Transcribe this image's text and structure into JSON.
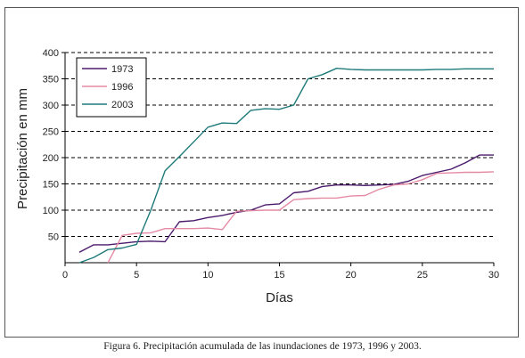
{
  "caption": "Figura 6. Precipitación acumulada de las inundaciones de 1973, 1996 y 2003.",
  "chart_data": {
    "type": "line",
    "xlabel": "Días",
    "ylabel": "Precipitación en mm",
    "xlim": [
      0,
      30
    ],
    "ylim": [
      0,
      400
    ],
    "xticks": [
      0,
      5,
      10,
      15,
      20,
      25,
      30
    ],
    "yticks": [
      50,
      100,
      150,
      200,
      250,
      300,
      350,
      400
    ],
    "grid": "horizontal dashed",
    "legend_position": "top-left",
    "series": [
      {
        "name": "1973",
        "color": "#4b1a6b",
        "points": [
          [
            1,
            20
          ],
          [
            2,
            34
          ],
          [
            3,
            34
          ],
          [
            4,
            37
          ],
          [
            5,
            40
          ],
          [
            6,
            41
          ],
          [
            7,
            40
          ],
          [
            8,
            78
          ],
          [
            9,
            80
          ],
          [
            10,
            86
          ],
          [
            11,
            90
          ],
          [
            12,
            96
          ],
          [
            13,
            100
          ],
          [
            14,
            110
          ],
          [
            15,
            112
          ],
          [
            16,
            133
          ],
          [
            17,
            136
          ],
          [
            18,
            145
          ],
          [
            19,
            148
          ],
          [
            20,
            148
          ],
          [
            21,
            147
          ],
          [
            22,
            148
          ],
          [
            23,
            149
          ],
          [
            24,
            155
          ],
          [
            25,
            166
          ],
          [
            26,
            172
          ],
          [
            27,
            178
          ],
          [
            28,
            190
          ],
          [
            29,
            205
          ],
          [
            30,
            205
          ]
        ]
      },
      {
        "name": "1996",
        "color": "#e48aa4",
        "points": [
          [
            3,
            0
          ],
          [
            4,
            52
          ],
          [
            5,
            56
          ],
          [
            6,
            57
          ],
          [
            7,
            65
          ],
          [
            8,
            65
          ],
          [
            9,
            65
          ],
          [
            10,
            66
          ],
          [
            11,
            63
          ],
          [
            12,
            98
          ],
          [
            13,
            99
          ],
          [
            14,
            100
          ],
          [
            15,
            100
          ],
          [
            16,
            120
          ],
          [
            17,
            122
          ],
          [
            18,
            123
          ],
          [
            19,
            123
          ],
          [
            20,
            127
          ],
          [
            21,
            128
          ],
          [
            22,
            140
          ],
          [
            23,
            148
          ],
          [
            24,
            150
          ],
          [
            25,
            158
          ],
          [
            26,
            170
          ],
          [
            27,
            171
          ],
          [
            28,
            172
          ],
          [
            29,
            172
          ],
          [
            30,
            173
          ]
        ]
      },
      {
        "name": "2003",
        "color": "#1f7a7a",
        "points": [
          [
            1,
            0
          ],
          [
            2,
            10
          ],
          [
            3,
            25
          ],
          [
            4,
            28
          ],
          [
            5,
            35
          ],
          [
            6,
            100
          ],
          [
            7,
            175
          ],
          [
            8,
            202
          ],
          [
            9,
            230
          ],
          [
            10,
            258
          ],
          [
            11,
            266
          ],
          [
            12,
            265
          ],
          [
            13,
            290
          ],
          [
            14,
            293
          ],
          [
            15,
            292
          ],
          [
            16,
            300
          ],
          [
            17,
            350
          ],
          [
            18,
            358
          ],
          [
            19,
            370
          ],
          [
            20,
            368
          ],
          [
            21,
            367
          ],
          [
            22,
            367
          ],
          [
            23,
            367
          ],
          [
            24,
            367
          ],
          [
            25,
            367
          ],
          [
            26,
            368
          ],
          [
            27,
            368
          ],
          [
            28,
            369
          ],
          [
            29,
            369
          ],
          [
            30,
            369
          ]
        ]
      }
    ]
  }
}
